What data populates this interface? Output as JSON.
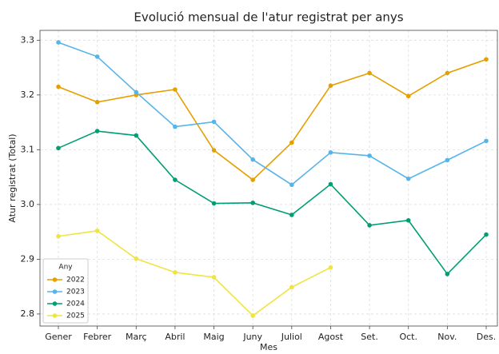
{
  "chart_data": {
    "type": "line",
    "title": "Evolució mensual de l'atur registrat per anys",
    "x_label": "Mes",
    "y_label": "Atur registrat (Total)",
    "categories": [
      "Gener",
      "Febrer",
      "Març",
      "Abril",
      "Maig",
      "Juny",
      "Juliol",
      "Agost",
      "Set.",
      "Oct.",
      "Nov.",
      "Des."
    ],
    "series": [
      {
        "name": "2022",
        "color": "#E69F00",
        "values": [
          3.215,
          3.187,
          3.2,
          3.21,
          3.099,
          3.045,
          3.113,
          3.217,
          3.24,
          3.198,
          3.24,
          3.265
        ]
      },
      {
        "name": "2023",
        "color": "#56B4E9",
        "values": [
          3.296,
          3.27,
          3.205,
          3.142,
          3.151,
          3.082,
          3.036,
          3.095,
          3.089,
          3.047,
          3.081,
          3.116
        ]
      },
      {
        "name": "2024",
        "color": "#009E73",
        "values": [
          3.103,
          3.134,
          3.126,
          3.045,
          3.002,
          3.003,
          2.981,
          3.037,
          2.962,
          2.971,
          2.873,
          2.945
        ]
      },
      {
        "name": "2025",
        "color": "#F0E442",
        "values": [
          2.942,
          2.952,
          2.901,
          2.876,
          2.867,
          2.797,
          2.849,
          2.885,
          null,
          null,
          null,
          null
        ]
      }
    ],
    "legend_title": "Any",
    "legend": "lower left",
    "ylim": [
      2.778,
      3.318
    ],
    "yticks": [
      2.8,
      2.9,
      {
        "value": 3,
        "label": "3.0"
      },
      3.1,
      3.2,
      3.3
    ],
    "grid": true
  }
}
